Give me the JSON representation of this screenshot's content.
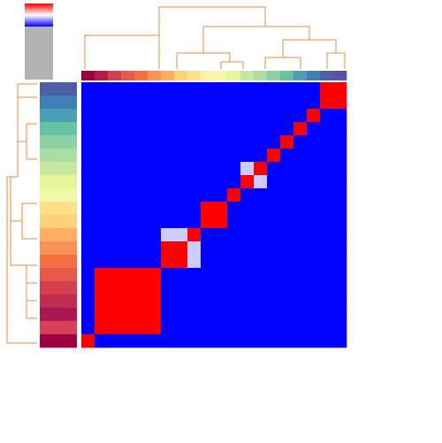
{
  "chart_data": {
    "type": "heatmap",
    "vlim": [
      0,
      1
    ],
    "values": [
      [
        0,
        0,
        0,
        0,
        0,
        0,
        0,
        0,
        0,
        0,
        0,
        0,
        0,
        0,
        0,
        0,
        0,
        0,
        1,
        1
      ],
      [
        0,
        0,
        0,
        0,
        0,
        0,
        0,
        0,
        0,
        0,
        0,
        0,
        0,
        0,
        0,
        0,
        0,
        0,
        1,
        1
      ],
      [
        0,
        0,
        0,
        0,
        0,
        0,
        0,
        0,
        0,
        0,
        0,
        0,
        0,
        0,
        0,
        0,
        0,
        1,
        0,
        0
      ],
      [
        0,
        0,
        0,
        0,
        0,
        0,
        0,
        0,
        0,
        0,
        0,
        0,
        0,
        0,
        0,
        0,
        1,
        0,
        0,
        0
      ],
      [
        0,
        0,
        0,
        0,
        0,
        0,
        0,
        0,
        0,
        0,
        0,
        0,
        0,
        0,
        0,
        1,
        0,
        0,
        0,
        0
      ],
      [
        0,
        0,
        0,
        0,
        0,
        0,
        0,
        0,
        0,
        0,
        0,
        0,
        0,
        0,
        1,
        0,
        0,
        0,
        0,
        0
      ],
      [
        0,
        0,
        0,
        0,
        0,
        0,
        0,
        0,
        0,
        0,
        0,
        0,
        0.4,
        1,
        0,
        0,
        0,
        0,
        0,
        0
      ],
      [
        0,
        0,
        0,
        0,
        0,
        0,
        0,
        0,
        0,
        0,
        0,
        0,
        1,
        0.4,
        0,
        0,
        0,
        0,
        0,
        0
      ],
      [
        0,
        0,
        0,
        0,
        0,
        0,
        0,
        0,
        0,
        0,
        0,
        1,
        0,
        0,
        0,
        0,
        0,
        0,
        0,
        0
      ],
      [
        0,
        0,
        0,
        0,
        0,
        0,
        0,
        0,
        0,
        1,
        1,
        0,
        0,
        0,
        0,
        0,
        0,
        0,
        0,
        0
      ],
      [
        0,
        0,
        0,
        0,
        0,
        0,
        0,
        0,
        0,
        1,
        1,
        0,
        0,
        0,
        0,
        0,
        0,
        0,
        0,
        0
      ],
      [
        0,
        0,
        0,
        0,
        0,
        0,
        0.4,
        0.4,
        1,
        0,
        0,
        0,
        0,
        0,
        0,
        0,
        0,
        0,
        0,
        0
      ],
      [
        0,
        0,
        0,
        0,
        0,
        0,
        1,
        1,
        0.4,
        0,
        0,
        0,
        0,
        0,
        0,
        0,
        0,
        0,
        0,
        0
      ],
      [
        0,
        0,
        0,
        0,
        0,
        0,
        1,
        1,
        0.4,
        0,
        0,
        0,
        0,
        0,
        0,
        0,
        0,
        0,
        0,
        0
      ],
      [
        0,
        1,
        1,
        1,
        1,
        1,
        0,
        0,
        0,
        0,
        0,
        0,
        0,
        0,
        0,
        0,
        0,
        0,
        0,
        0
      ],
      [
        0,
        1,
        1,
        1,
        1,
        1,
        0,
        0,
        0,
        0,
        0,
        0,
        0,
        0,
        0,
        0,
        0,
        0,
        0,
        0
      ],
      [
        0,
        1,
        1,
        1,
        1,
        1,
        0,
        0,
        0,
        0,
        0,
        0,
        0,
        0,
        0,
        0,
        0,
        0,
        0,
        0
      ],
      [
        0,
        1,
        1,
        1,
        1,
        1,
        0,
        0,
        0,
        0,
        0,
        0,
        0,
        0,
        0,
        0,
        0,
        0,
        0,
        0
      ],
      [
        0,
        1,
        1,
        1,
        1,
        1,
        0,
        0,
        0,
        0,
        0,
        0,
        0,
        0,
        0,
        0,
        0,
        0,
        0,
        0
      ],
      [
        1,
        0,
        0,
        0,
        0,
        0,
        0,
        0,
        0,
        0,
        0,
        0,
        0,
        0,
        0,
        0,
        0,
        0,
        0,
        0
      ]
    ],
    "colors": {
      "low": "#0000ff",
      "mid": "#ffffff",
      "high": "#ff0000"
    },
    "row_colors": [
      "#4e5fa6",
      "#3f7fb5",
      "#4a9fb5",
      "#66c2a5",
      "#8ed1a4",
      "#abdda4",
      "#c8e89f",
      "#e6f598",
      "#f3f7aa",
      "#fee08b",
      "#fdd07a",
      "#fdae61",
      "#f99254",
      "#f46d43",
      "#e55a4b",
      "#d53e4f",
      "#c02d51",
      "#a8174f",
      "#d8405a",
      "#9e0142"
    ],
    "col_colors": [
      "#9e0142",
      "#b51c4b",
      "#d53e4f",
      "#e55a4b",
      "#f46d43",
      "#f99254",
      "#fdae61",
      "#fdd07a",
      "#fee08b",
      "#fef1a6",
      "#f3f7aa",
      "#e6f598",
      "#c8e89f",
      "#abdda4",
      "#8ed1a4",
      "#66c2a5",
      "#4a9fb5",
      "#3f7fb5",
      "#4e5fa6",
      "#5e4fa2"
    ]
  }
}
